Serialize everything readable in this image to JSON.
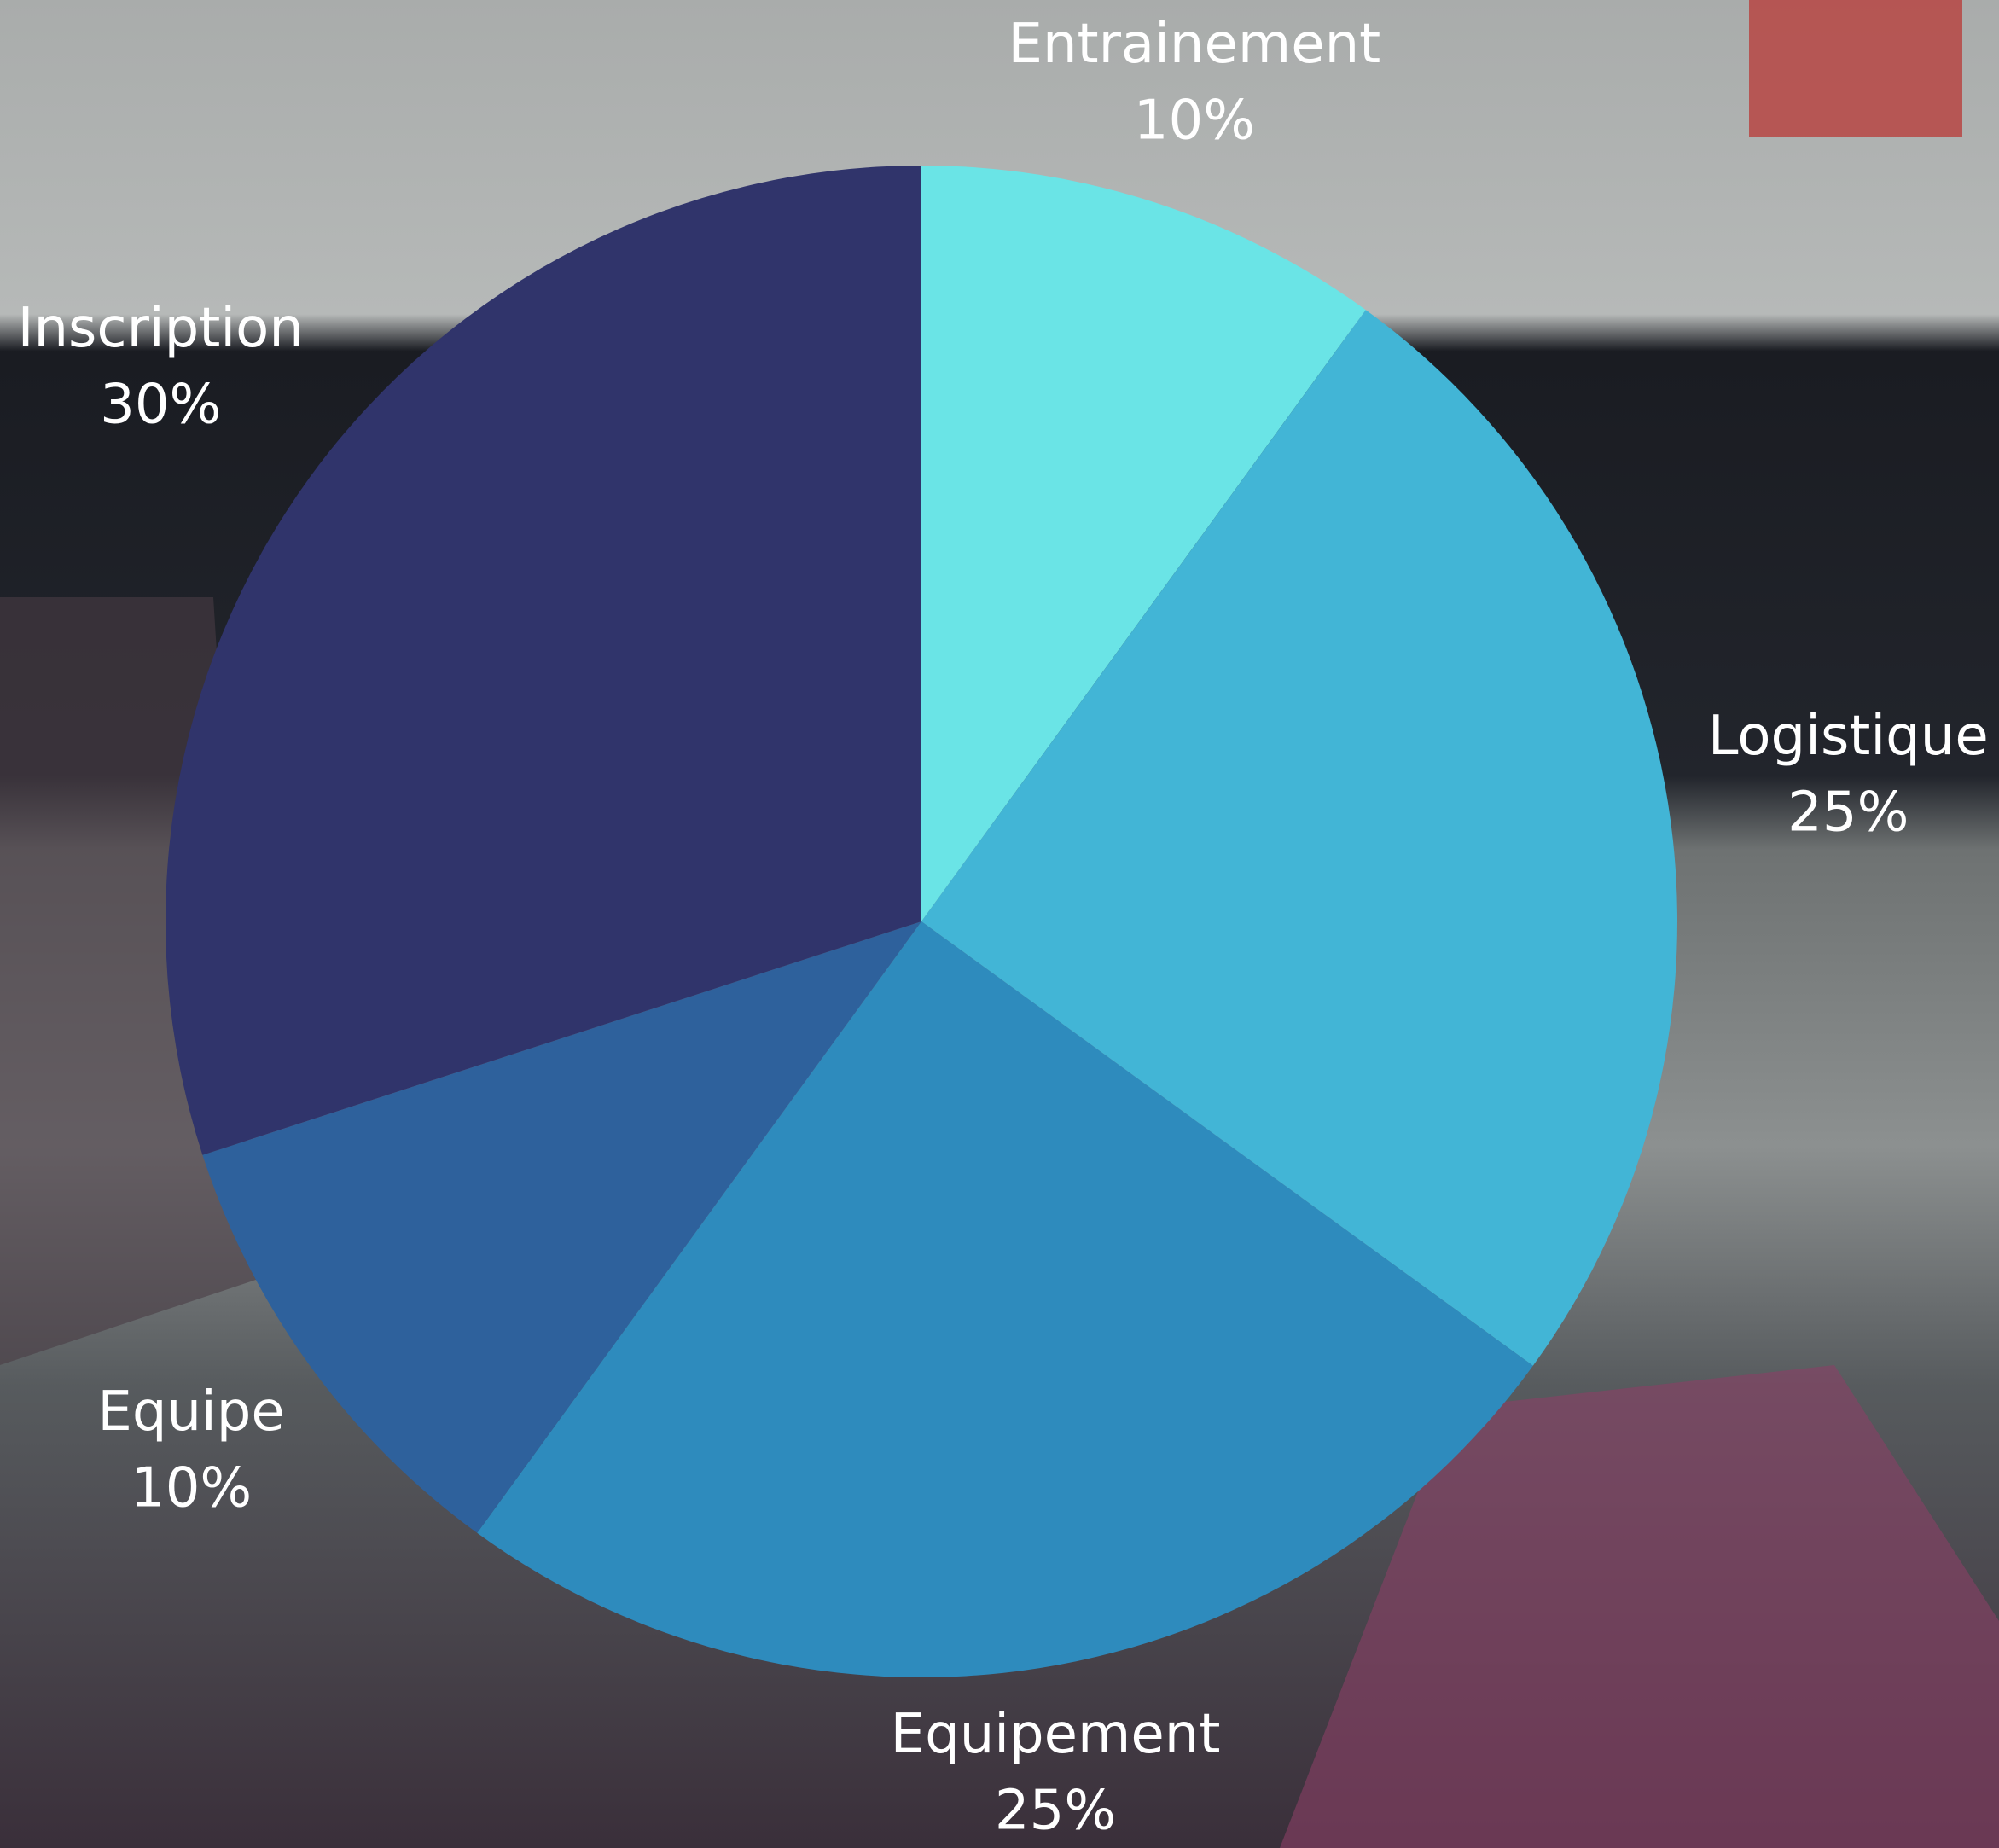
{
  "chart_data": {
    "type": "pie",
    "categories": [
      "Entrainement",
      "Logistique",
      "Equipement",
      "Equipe",
      "Inscription"
    ],
    "values": [
      10,
      25,
      25,
      10,
      30
    ],
    "value_labels": [
      "10%",
      "25%",
      "25%",
      "10%",
      "30%"
    ],
    "colors": [
      "#6ae4e6",
      "#42b5d6",
      "#2e8bbd",
      "#2e619c",
      "#30346b"
    ]
  }
}
